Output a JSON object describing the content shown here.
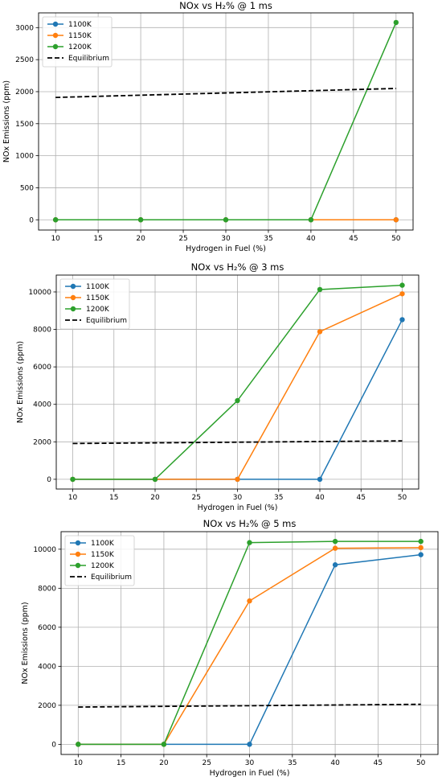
{
  "chart_data": [
    {
      "type": "line",
      "title": "NOx vs H₂% @ 1 ms",
      "xlabel": "Hydrogen in Fuel (%)",
      "ylabel": "NOx Emissions (ppm)",
      "x": [
        10,
        20,
        30,
        40,
        50
      ],
      "xlim": [
        8,
        52
      ],
      "xticks": [
        10,
        15,
        20,
        25,
        30,
        35,
        40,
        45,
        50
      ],
      "ylim": [
        -160,
        3230
      ],
      "yticks": [
        0,
        500,
        1000,
        1500,
        2000,
        2500,
        3000
      ],
      "grid": true,
      "legend_position": "top-left",
      "series": [
        {
          "name": "1100K",
          "values": [
            0,
            0,
            0,
            0,
            0
          ],
          "color": "#1f77b4",
          "marker": "circle"
        },
        {
          "name": "1150K",
          "values": [
            0,
            0,
            0,
            0,
            0
          ],
          "color": "#ff7f0e",
          "marker": "circle"
        },
        {
          "name": "1200K",
          "values": [
            0,
            0,
            0,
            0,
            3080
          ],
          "color": "#2ca02c",
          "marker": "circle"
        },
        {
          "name": "Equilibrium",
          "values": [
            1910,
            1945,
            1980,
            2015,
            2050
          ],
          "color": "#000000",
          "dashed": true
        }
      ]
    },
    {
      "type": "line",
      "title": "NOx vs H₂% @ 3 ms",
      "xlabel": "Hydrogen in Fuel (%)",
      "ylabel": "NOx Emissions (ppm)",
      "x": [
        10,
        20,
        30,
        40,
        50
      ],
      "xlim": [
        8,
        52
      ],
      "xticks": [
        10,
        15,
        20,
        25,
        30,
        35,
        40,
        45,
        50
      ],
      "ylim": [
        -520,
        10900
      ],
      "yticks": [
        0,
        2000,
        4000,
        6000,
        8000,
        10000
      ],
      "grid": true,
      "legend_position": "top-left",
      "series": [
        {
          "name": "1100K",
          "values": [
            0,
            0,
            0,
            0,
            8520
          ],
          "color": "#1f77b4",
          "marker": "circle"
        },
        {
          "name": "1150K",
          "values": [
            0,
            0,
            0,
            7880,
            9900
          ],
          "color": "#ff7f0e",
          "marker": "circle"
        },
        {
          "name": "1200K",
          "values": [
            0,
            0,
            4200,
            10130,
            10360
          ],
          "color": "#2ca02c",
          "marker": "circle"
        },
        {
          "name": "Equilibrium",
          "values": [
            1910,
            1945,
            1980,
            2015,
            2050
          ],
          "color": "#000000",
          "dashed": true
        }
      ]
    },
    {
      "type": "line",
      "title": "NOx vs H₂% @ 5 ms",
      "xlabel": "Hydrogen in Fuel (%)",
      "ylabel": "NOx Emissions (ppm)",
      "x": [
        10,
        20,
        30,
        40,
        50
      ],
      "xlim": [
        8,
        52
      ],
      "xticks": [
        10,
        15,
        20,
        25,
        30,
        35,
        40,
        45,
        50
      ],
      "ylim": [
        -520,
        10900
      ],
      "yticks": [
        0,
        2000,
        4000,
        6000,
        8000,
        10000
      ],
      "grid": true,
      "legend_position": "top-left",
      "series": [
        {
          "name": "1100K",
          "values": [
            0,
            0,
            0,
            9200,
            9720
          ],
          "color": "#1f77b4",
          "marker": "circle"
        },
        {
          "name": "1150K",
          "values": [
            0,
            0,
            7350,
            10050,
            10080
          ],
          "color": "#ff7f0e",
          "marker": "circle"
        },
        {
          "name": "1200K",
          "values": [
            0,
            0,
            10340,
            10400,
            10400
          ],
          "color": "#2ca02c",
          "marker": "circle"
        },
        {
          "name": "Equilibrium",
          "values": [
            1910,
            1945,
            1980,
            2015,
            2050
          ],
          "color": "#000000",
          "dashed": true
        }
      ]
    }
  ]
}
